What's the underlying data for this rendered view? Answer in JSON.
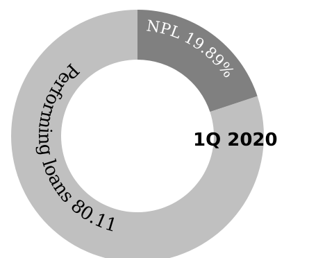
{
  "chart_data": {
    "type": "pie",
    "variant": "donut",
    "title": "",
    "center_label": "1Q 2020",
    "slices": [
      {
        "name": "NPL",
        "value": 19.89,
        "label": "NPL 19.89%",
        "color": "#808080",
        "text_color": "#ffffff"
      },
      {
        "name": "Performing loans",
        "value": 80.11,
        "label": "Performing loans 80.11 %",
        "color": "#c0c0c0",
        "text_color": "#000000"
      }
    ],
    "start_angle": "12 o'clock",
    "direction": "clockwise",
    "legend": "none"
  }
}
